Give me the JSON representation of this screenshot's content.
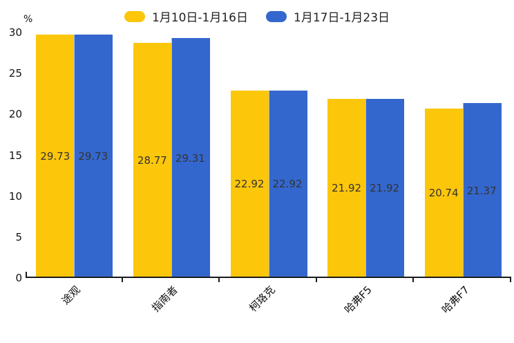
{
  "chart_data": {
    "type": "bar",
    "title": "",
    "xlabel": "",
    "ylabel": "%",
    "ylim": [
      0,
      30
    ],
    "yticks": [
      0,
      5,
      10,
      15,
      20,
      25,
      30
    ],
    "grid": false,
    "legend_position": "top",
    "categories": [
      "途观",
      "指南者",
      "柯珞克",
      "哈弗F5",
      "哈弗F7"
    ],
    "series": [
      {
        "name": "1月10日-1月16日",
        "color": "#fcc60b",
        "values": [
          29.73,
          28.77,
          22.92,
          21.92,
          20.74
        ]
      },
      {
        "name": "1月17日-1月23日",
        "color": "#3467cd",
        "values": [
          29.73,
          29.31,
          22.92,
          21.92,
          21.37
        ]
      }
    ],
    "value_label_color": "#333333",
    "axis_color": "#1a1a1a"
  }
}
